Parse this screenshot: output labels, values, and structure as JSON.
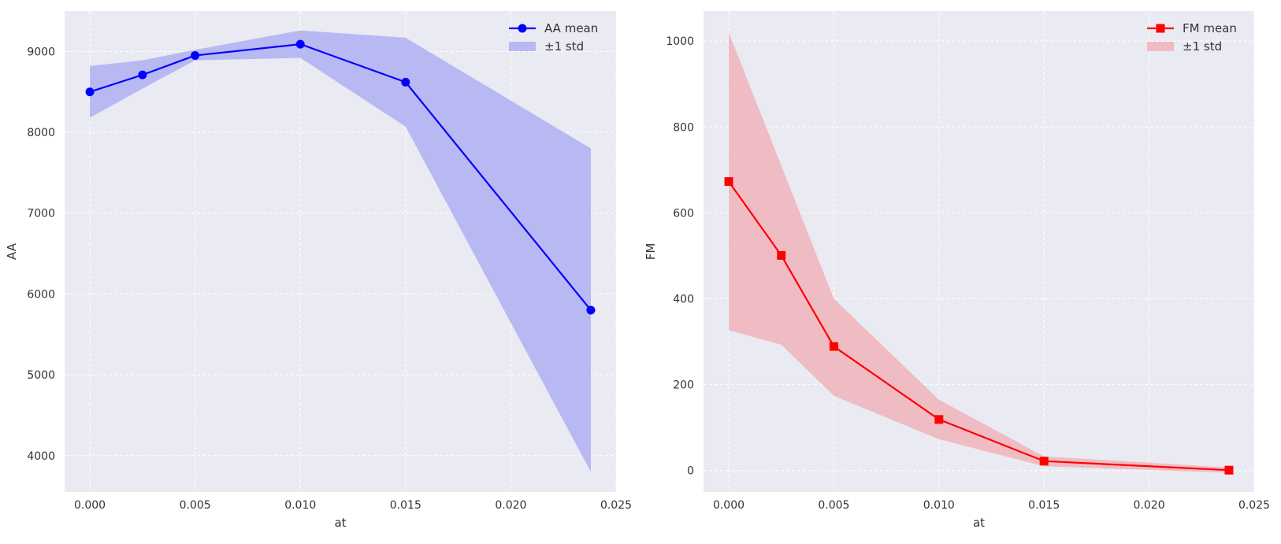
{
  "chart_data": [
    {
      "type": "line",
      "xlabel": "at",
      "ylabel": "AA",
      "xlim": [
        -0.0012,
        0.025
      ],
      "ylim": [
        3550,
        9500
      ],
      "xticks": [
        0.0,
        0.005,
        0.01,
        0.015,
        0.02,
        0.025
      ],
      "xtick_labels": [
        "0.000",
        "0.005",
        "0.010",
        "0.015",
        "0.020",
        "0.025"
      ],
      "yticks": [
        4000,
        5000,
        6000,
        7000,
        8000,
        9000
      ],
      "ytick_labels": [
        "4000",
        "5000",
        "6000",
        "7000",
        "8000",
        "9000"
      ],
      "grid": true,
      "legend_position": "top-right",
      "series": [
        {
          "name": "AA mean",
          "marker": "circle",
          "color": "#0000ff",
          "x": [
            0.0,
            0.0025,
            0.005,
            0.01,
            0.015,
            0.0238
          ],
          "y": [
            8500,
            8710,
            8950,
            9090,
            8620,
            5800
          ]
        }
      ],
      "band": {
        "name": "±1 std",
        "color": "#b8b8f3",
        "x": [
          0.0,
          0.0025,
          0.005,
          0.01,
          0.015,
          0.0238
        ],
        "lower": [
          8180,
          8540,
          8890,
          8920,
          8070,
          3800
        ],
        "upper": [
          8820,
          8890,
          9020,
          9260,
          9170,
          7800
        ]
      }
    },
    {
      "type": "line",
      "xlabel": "at",
      "ylabel": "FM",
      "xlim": [
        -0.0012,
        0.025
      ],
      "ylim": [
        -50,
        1070
      ],
      "xticks": [
        0.0,
        0.005,
        0.01,
        0.015,
        0.02,
        0.025
      ],
      "xtick_labels": [
        "0.000",
        "0.005",
        "0.010",
        "0.015",
        "0.020",
        "0.025"
      ],
      "yticks": [
        0,
        200,
        400,
        600,
        800,
        1000
      ],
      "ytick_labels": [
        "0",
        "200",
        "400",
        "600",
        "800",
        "1000"
      ],
      "grid": true,
      "legend_position": "top-right",
      "series": [
        {
          "name": "FM mean",
          "marker": "square",
          "color": "#ff0000",
          "x": [
            0.0,
            0.0025,
            0.005,
            0.01,
            0.015,
            0.0238
          ],
          "y": [
            673,
            501,
            289,
            119,
            22,
            1
          ]
        }
      ],
      "band": {
        "name": "±1 std",
        "color": "#efbcc4",
        "x": [
          0.0,
          0.0025,
          0.005,
          0.01,
          0.015,
          0.0238
        ],
        "lower": [
          327,
          293,
          174,
          73,
          10,
          -5
        ],
        "upper": [
          1020,
          710,
          400,
          165,
          33,
          7
        ]
      }
    }
  ]
}
